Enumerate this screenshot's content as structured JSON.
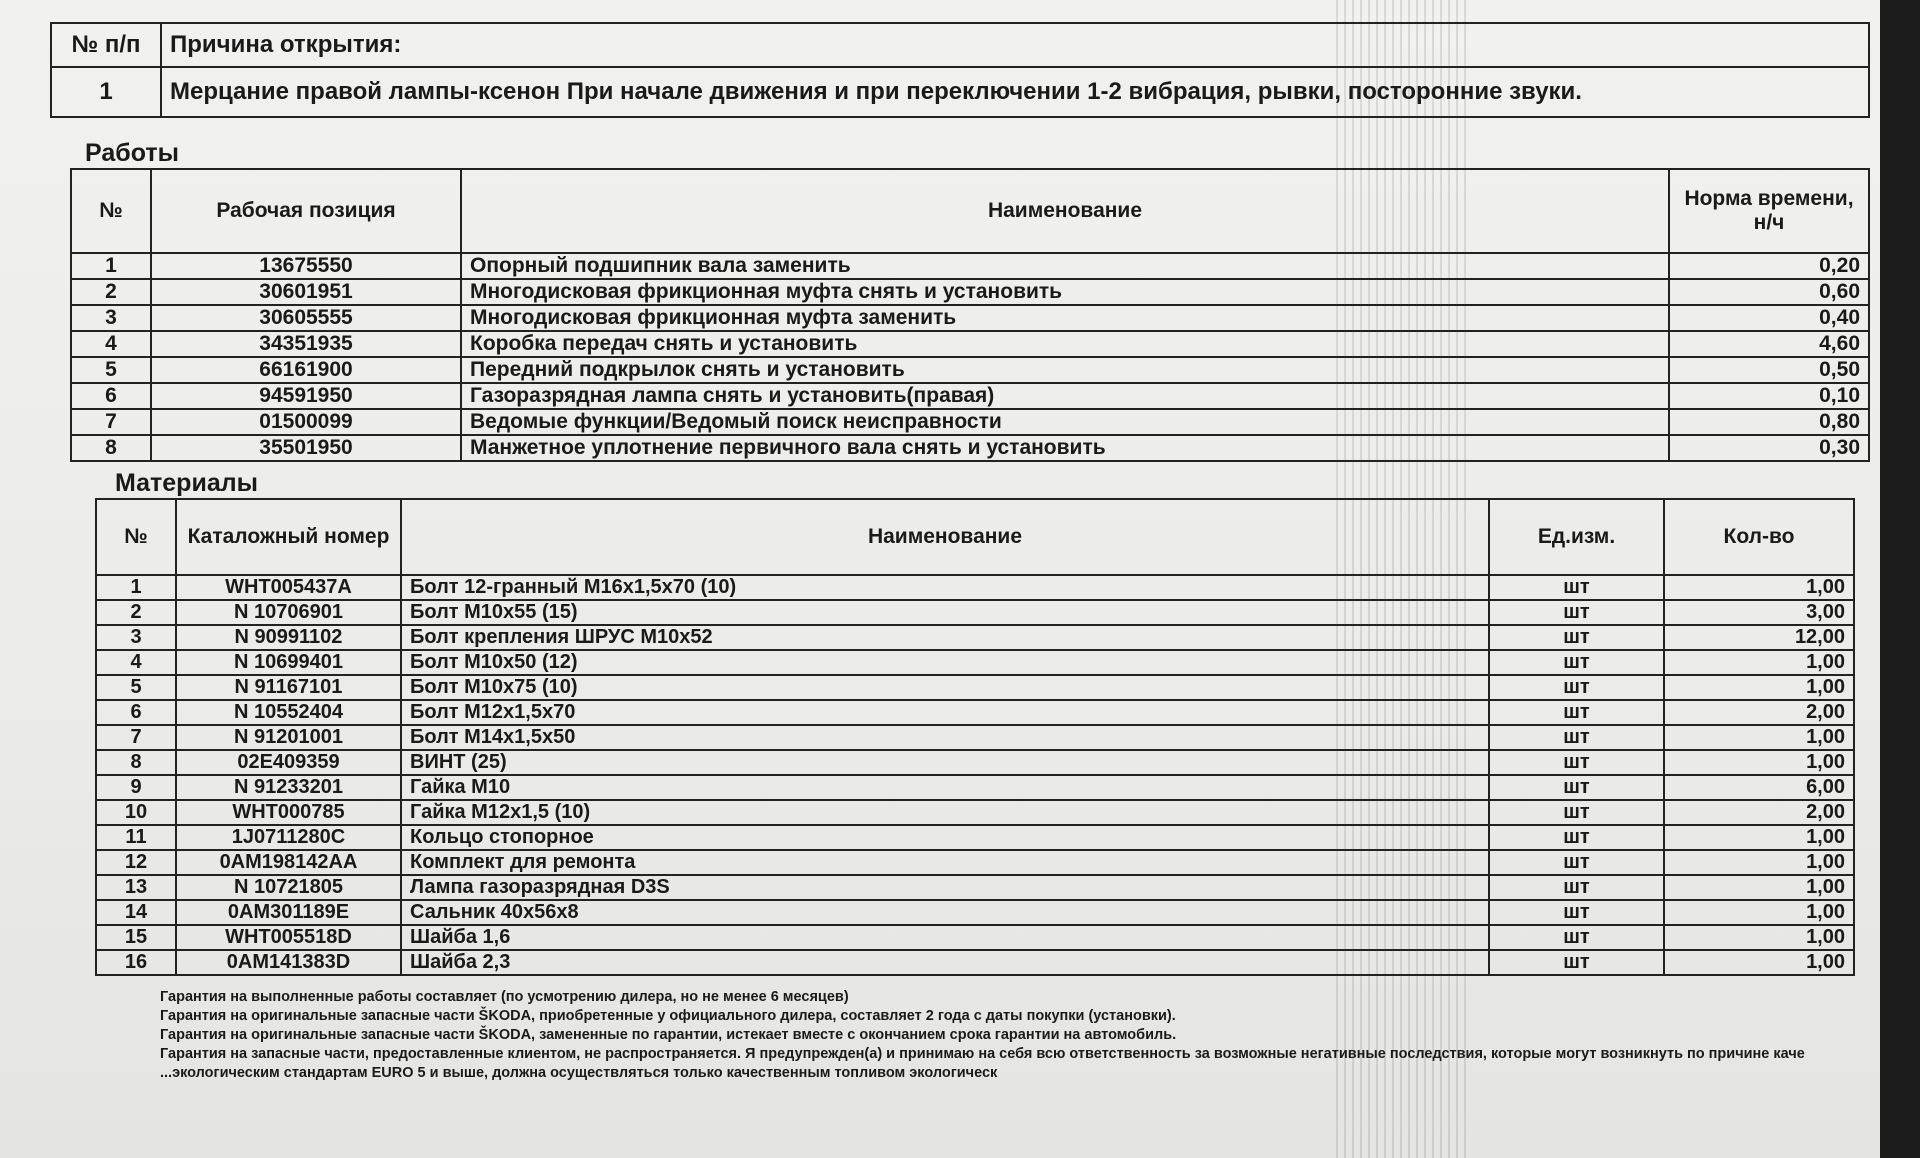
{
  "reason_table": {
    "col_num": "№ п/п",
    "col_reason": "Причина открытия:",
    "rows": [
      {
        "num": "1",
        "reason": "Мерцание правой лампы-ксенон При начале движения и при переключении 1-2 вибрация, рывки, посторонние звуки."
      }
    ]
  },
  "works": {
    "title": "Работы",
    "headers": {
      "num": "№",
      "position": "Рабочая позиция",
      "name": "Наименование",
      "norm": "Норма времени, н/ч"
    },
    "rows": [
      {
        "num": "1",
        "position": "13675550",
        "name": "Опорный подшипник вала заменить",
        "norm": "0,20"
      },
      {
        "num": "2",
        "position": "30601951",
        "name": "Многодисковая фрикционная муфта снять и установить",
        "norm": "0,60"
      },
      {
        "num": "3",
        "position": "30605555",
        "name": "Многодисковая фрикционная муфта заменить",
        "norm": "0,40"
      },
      {
        "num": "4",
        "position": "34351935",
        "name": "Коробка передач снять и установить",
        "norm": "4,60"
      },
      {
        "num": "5",
        "position": "66161900",
        "name": "Передний подкрылок снять и установить",
        "norm": "0,50"
      },
      {
        "num": "6",
        "position": "94591950",
        "name": "Газоразрядная лампа снять и установить(правая)",
        "norm": "0,10"
      },
      {
        "num": "7",
        "position": "01500099",
        "name": "Ведомые функции/Ведомый поиск неисправности",
        "norm": "0,80"
      },
      {
        "num": "8",
        "position": "35501950",
        "name": "Манжетное уплотнение первичного вала снять и установить",
        "norm": "0,30"
      }
    ]
  },
  "materials": {
    "title": "Материалы",
    "headers": {
      "num": "№",
      "catalog": "Каталожный номер",
      "name": "Наименование",
      "unit": "Ед.изм.",
      "qty": "Кол-во"
    },
    "rows": [
      {
        "num": "1",
        "catalog": "WHT005437A",
        "name": "Болт 12-гранный M16x1,5x70 (10)",
        "unit": "шт",
        "qty": "1,00"
      },
      {
        "num": "2",
        "catalog": "N 10706901",
        "name": "Болт M10x55 (15)",
        "unit": "шт",
        "qty": "3,00"
      },
      {
        "num": "3",
        "catalog": "N 90991102",
        "name": "Болт крепления ШРУС M10x52",
        "unit": "шт",
        "qty": "12,00"
      },
      {
        "num": "4",
        "catalog": "N 10699401",
        "name": "Болт M10x50 (12)",
        "unit": "шт",
        "qty": "1,00"
      },
      {
        "num": "5",
        "catalog": "N 91167101",
        "name": "Болт M10x75 (10)",
        "unit": "шт",
        "qty": "1,00"
      },
      {
        "num": "6",
        "catalog": "N 10552404",
        "name": "Болт M12x1,5x70",
        "unit": "шт",
        "qty": "2,00"
      },
      {
        "num": "7",
        "catalog": "N 91201001",
        "name": "Болт M14x1,5x50",
        "unit": "шт",
        "qty": "1,00"
      },
      {
        "num": "8",
        "catalog": "02E409359",
        "name": "ВИНТ (25)",
        "unit": "шт",
        "qty": "1,00"
      },
      {
        "num": "9",
        "catalog": "N 91233201",
        "name": "Гайка M10",
        "unit": "шт",
        "qty": "6,00"
      },
      {
        "num": "10",
        "catalog": "WHT000785",
        "name": "Гайка M12x1,5 (10)",
        "unit": "шт",
        "qty": "2,00"
      },
      {
        "num": "11",
        "catalog": "1J0711280C",
        "name": "Кольцо стопорное",
        "unit": "шт",
        "qty": "1,00"
      },
      {
        "num": "12",
        "catalog": "0AM198142AA",
        "name": "Комплект для ремонта",
        "unit": "шт",
        "qty": "1,00"
      },
      {
        "num": "13",
        "catalog": "N 10721805",
        "name": "Лампа газоразрядная D3S",
        "unit": "шт",
        "qty": "1,00"
      },
      {
        "num": "14",
        "catalog": "0AM301189E",
        "name": "Сальник 40x56x8",
        "unit": "шт",
        "qty": "1,00"
      },
      {
        "num": "15",
        "catalog": "WHT005518D",
        "name": "Шайба 1,6",
        "unit": "шт",
        "qty": "1,00"
      },
      {
        "num": "16",
        "catalog": "0AM141383D",
        "name": "Шайба 2,3",
        "unit": "шт",
        "qty": "1,00"
      }
    ]
  },
  "footer": {
    "lines": [
      "Гарантия на выполненные работы составляет (по усмотрению дилера, но не менее 6 месяцев)",
      "Гарантия на оригинальные запасные части ŠKODA, приобретенные у официального дилера, составляет 2 года с даты покупки (установки).",
      "Гарантия на оригинальные запасные части ŠKODA, замененные по гарантии, истекает вместе с окончанием срока гарантии на автомобиль.",
      "Гарантия на запасные части, предоставленные клиентом, не распространяется. Я предупрежден(а) и принимаю на себя всю ответственность за возможные негативные последствия, которые могут возникнуть по причине каче",
      "...экологическим стандартам EURO 5 и выше, должна осуществляться только качественным топливом экологическ"
    ]
  }
}
